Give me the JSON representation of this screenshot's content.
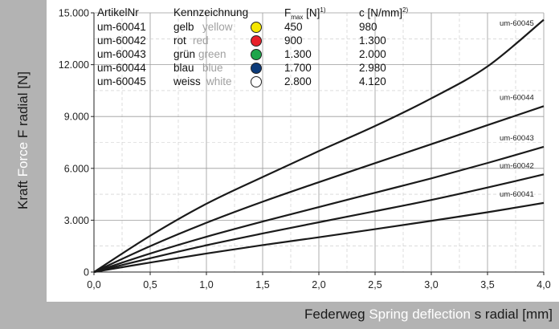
{
  "chart_data": {
    "type": "line",
    "ylabel_de": "Kraft",
    "ylabel_en": "Force",
    "ylabel_sym": "F radial [N]",
    "xlabel_de": "Federweg",
    "xlabel_en": "Spring deflection",
    "xlabel_sym": "s radial [mm]",
    "xlim": [
      0,
      4
    ],
    "ylim": [
      0,
      15000
    ],
    "x_ticks": [
      "0,0",
      "0,5",
      "1,0",
      "1,5",
      "2,0",
      "2,5",
      "3,0",
      "3,5",
      "4,0"
    ],
    "y_ticks": [
      "0",
      "3.000",
      "6.000",
      "9.000",
      "12.000",
      "15.000"
    ],
    "grid": true,
    "series": [
      {
        "name": "um-60041",
        "x": [
          0,
          0.5,
          1,
          1.5,
          2,
          2.5,
          3,
          3.5,
          4
        ],
        "y": [
          0,
          550,
          1070,
          1560,
          2010,
          2480,
          2960,
          3460,
          4000
        ]
      },
      {
        "name": "um-60042",
        "x": [
          0,
          0.5,
          1,
          1.5,
          2,
          2.5,
          3,
          3.5,
          4
        ],
        "y": [
          0,
          800,
          1550,
          2230,
          2880,
          3520,
          4170,
          4890,
          5650
        ]
      },
      {
        "name": "um-60043",
        "x": [
          0,
          0.5,
          1,
          1.5,
          2,
          2.5,
          3,
          3.5,
          4
        ],
        "y": [
          0,
          1070,
          2040,
          2920,
          3760,
          4590,
          5420,
          6310,
          7250
        ]
      },
      {
        "name": "um-60044",
        "x": [
          0,
          0.5,
          1,
          1.5,
          2,
          2.5,
          3,
          3.5,
          4
        ],
        "y": [
          0,
          1500,
          2850,
          4070,
          5200,
          6300,
          7400,
          8500,
          9600
        ]
      },
      {
        "name": "um-60045",
        "x": [
          0,
          0.5,
          1,
          1.5,
          2,
          2.5,
          3,
          3.5,
          4
        ],
        "y": [
          0,
          2100,
          3950,
          5500,
          7000,
          8450,
          10050,
          11900,
          14600
        ]
      }
    ]
  },
  "legend": {
    "headers": {
      "artikel": "ArtikelNr",
      "kennzeichnung": "Kennzeichnung",
      "fmax_main": "F",
      "fmax_sub": "max",
      "fmax_unit": " [N]",
      "fmax_sup": "1)",
      "c_main": "c [N/mm]",
      "c_sup": "2)"
    },
    "rows": [
      {
        "nr": "um-60041",
        "de": "gelb",
        "en": "yellow",
        "color": "#f5e600",
        "fmax": "450",
        "c": "980"
      },
      {
        "nr": "um-60042",
        "de": "rot",
        "en": "red",
        "color": "#e8202a",
        "fmax": "900",
        "c": "1.300"
      },
      {
        "nr": "um-60043",
        "de": "grün",
        "en": "green",
        "color": "#1fa54a",
        "fmax": "1.300",
        "c": "2.000"
      },
      {
        "nr": "um-60044",
        "de": "blau",
        "en": "blue",
        "color": "#0d3b7a",
        "fmax": "1.700",
        "c": "2.980"
      },
      {
        "nr": "um-60045",
        "de": "weiss",
        "en": "white",
        "color": "#ffffff",
        "fmax": "2.800",
        "c": "4.120"
      }
    ]
  }
}
